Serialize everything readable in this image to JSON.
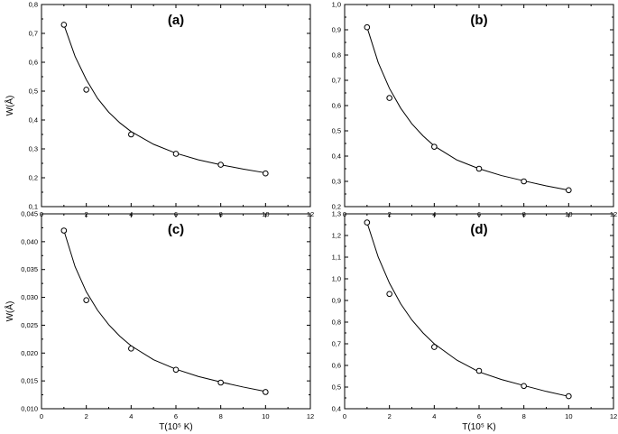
{
  "chart_data": [
    {
      "type": "scatter",
      "panel_label": "(a)",
      "xlabel": "",
      "ylabel": "W(Å)",
      "xlim": [
        0,
        12
      ],
      "ylim": [
        0.1,
        0.8
      ],
      "x_ticks": [
        0,
        2,
        4,
        6,
        8,
        10,
        12
      ],
      "x_tick_labels": [
        "0",
        "2",
        "4",
        "6",
        "8",
        "10",
        "12"
      ],
      "y_ticks": [
        0.1,
        0.2,
        0.3,
        0.4,
        0.5,
        0.6,
        0.7,
        0.8
      ],
      "y_tick_labels": [
        "0,1",
        "0,2",
        "0,3",
        "0,4",
        "0,5",
        "0,6",
        "0,7",
        "0,8"
      ],
      "points": {
        "x": [
          1,
          2,
          4,
          6,
          8,
          10
        ],
        "y": [
          0.73,
          0.505,
          0.35,
          0.283,
          0.245,
          0.215
        ]
      },
      "fit_curve": {
        "x": [
          1,
          1.5,
          2,
          2.5,
          3,
          3.5,
          4,
          5,
          6,
          7,
          8,
          9,
          10
        ],
        "y": [
          0.73,
          0.62,
          0.54,
          0.475,
          0.427,
          0.39,
          0.36,
          0.316,
          0.285,
          0.262,
          0.245,
          0.23,
          0.217
        ]
      }
    },
    {
      "type": "scatter",
      "panel_label": "(b)",
      "xlabel": "",
      "ylabel": "",
      "xlim": [
        0,
        12
      ],
      "ylim": [
        0.2,
        1.0
      ],
      "x_ticks": [
        0,
        2,
        4,
        6,
        8,
        10,
        12
      ],
      "x_tick_labels": [
        "0",
        "2",
        "4",
        "6",
        "8",
        "10",
        "12"
      ],
      "y_ticks": [
        0.2,
        0.3,
        0.4,
        0.5,
        0.6,
        0.7,
        0.8,
        0.9,
        1.0
      ],
      "y_tick_labels": [
        "0,2",
        "0,3",
        "0,4",
        "0,5",
        "0,6",
        "0,7",
        "0,8",
        "0,9",
        "1,0"
      ],
      "points": {
        "x": [
          1,
          2,
          4,
          6,
          8,
          10
        ],
        "y": [
          0.91,
          0.63,
          0.437,
          0.35,
          0.3,
          0.265
        ]
      },
      "fit_curve": {
        "x": [
          1,
          1.5,
          2,
          2.5,
          3,
          3.5,
          4,
          5,
          6,
          7,
          8,
          9,
          10
        ],
        "y": [
          0.91,
          0.77,
          0.668,
          0.59,
          0.528,
          0.48,
          0.44,
          0.385,
          0.35,
          0.323,
          0.302,
          0.282,
          0.265
        ]
      }
    },
    {
      "type": "scatter",
      "panel_label": "(c)",
      "xlabel": "T(10⁵ K)",
      "ylabel": "W(Å)",
      "xlim": [
        0,
        12
      ],
      "ylim": [
        0.01,
        0.045
      ],
      "x_ticks": [
        0,
        2,
        4,
        6,
        8,
        10,
        12
      ],
      "x_tick_labels": [
        "0",
        "2",
        "4",
        "6",
        "8",
        "10",
        "12"
      ],
      "y_ticks": [
        0.01,
        0.015,
        0.02,
        0.025,
        0.03,
        0.035,
        0.04,
        0.045
      ],
      "y_tick_labels": [
        "0,010",
        "0,015",
        "0,020",
        "0,025",
        "0,030",
        "0,035",
        "0,040",
        "0,045"
      ],
      "points": {
        "x": [
          1,
          2,
          4,
          6,
          8,
          10
        ],
        "y": [
          0.042,
          0.0295,
          0.0208,
          0.017,
          0.0147,
          0.013
        ]
      },
      "fit_curve": {
        "x": [
          1,
          1.5,
          2,
          2.5,
          3,
          3.5,
          4,
          5,
          6,
          7,
          8,
          9,
          10
        ],
        "y": [
          0.042,
          0.0355,
          0.031,
          0.0277,
          0.0251,
          0.023,
          0.0213,
          0.0188,
          0.0171,
          0.0158,
          0.0148,
          0.0139,
          0.0131
        ]
      }
    },
    {
      "type": "scatter",
      "panel_label": "(d)",
      "xlabel": "T(10⁵ K)",
      "ylabel": "",
      "xlim": [
        0,
        12
      ],
      "ylim": [
        0.4,
        1.3
      ],
      "x_ticks": [
        0,
        2,
        4,
        6,
        8,
        10,
        12
      ],
      "x_tick_labels": [
        "0",
        "2",
        "4",
        "6",
        "8",
        "10",
        "12"
      ],
      "y_ticks": [
        0.4,
        0.5,
        0.6,
        0.7,
        0.8,
        0.9,
        1.0,
        1.1,
        1.2,
        1.3
      ],
      "y_tick_labels": [
        "0,4",
        "0,5",
        "0,6",
        "0,7",
        "0,8",
        "0,9",
        "1,0",
        "1,1",
        "1,2",
        "1,3"
      ],
      "points": {
        "x": [
          1,
          2,
          4,
          6,
          8,
          10
        ],
        "y": [
          1.26,
          0.93,
          0.685,
          0.575,
          0.505,
          0.458
        ]
      },
      "fit_curve": {
        "x": [
          1,
          1.5,
          2,
          2.5,
          3,
          3.5,
          4,
          5,
          6,
          7,
          8,
          9,
          10
        ],
        "y": [
          1.26,
          1.1,
          0.98,
          0.885,
          0.81,
          0.75,
          0.7,
          0.625,
          0.57,
          0.535,
          0.507,
          0.48,
          0.457
        ]
      }
    }
  ]
}
